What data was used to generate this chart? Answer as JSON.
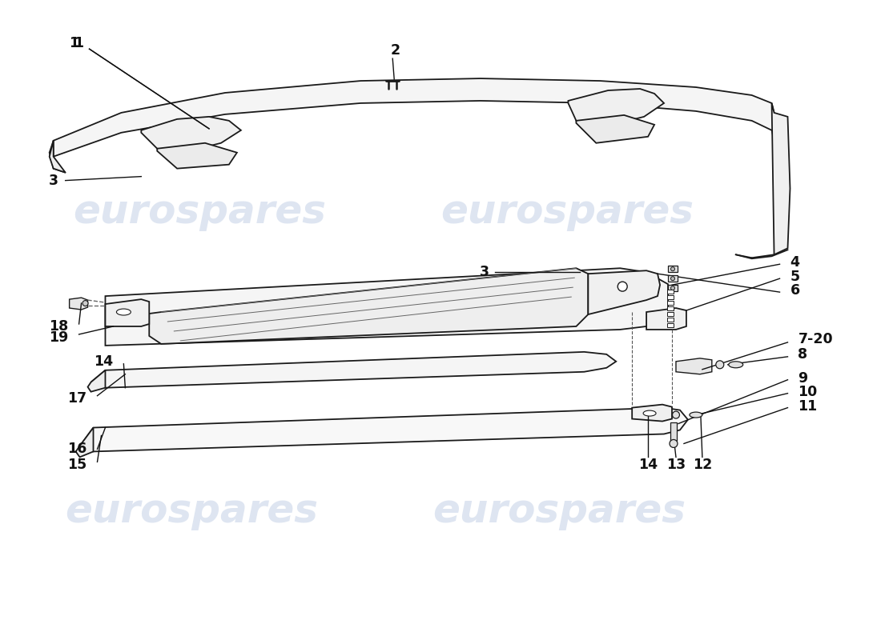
{
  "bg_color": "#ffffff",
  "watermark_text": "eurospares",
  "watermark_color": "#c8d4e8",
  "line_color": "#1a1a1a",
  "lw": 1.3,
  "label_fontsize": 12.5,
  "label_fontweight": "bold"
}
